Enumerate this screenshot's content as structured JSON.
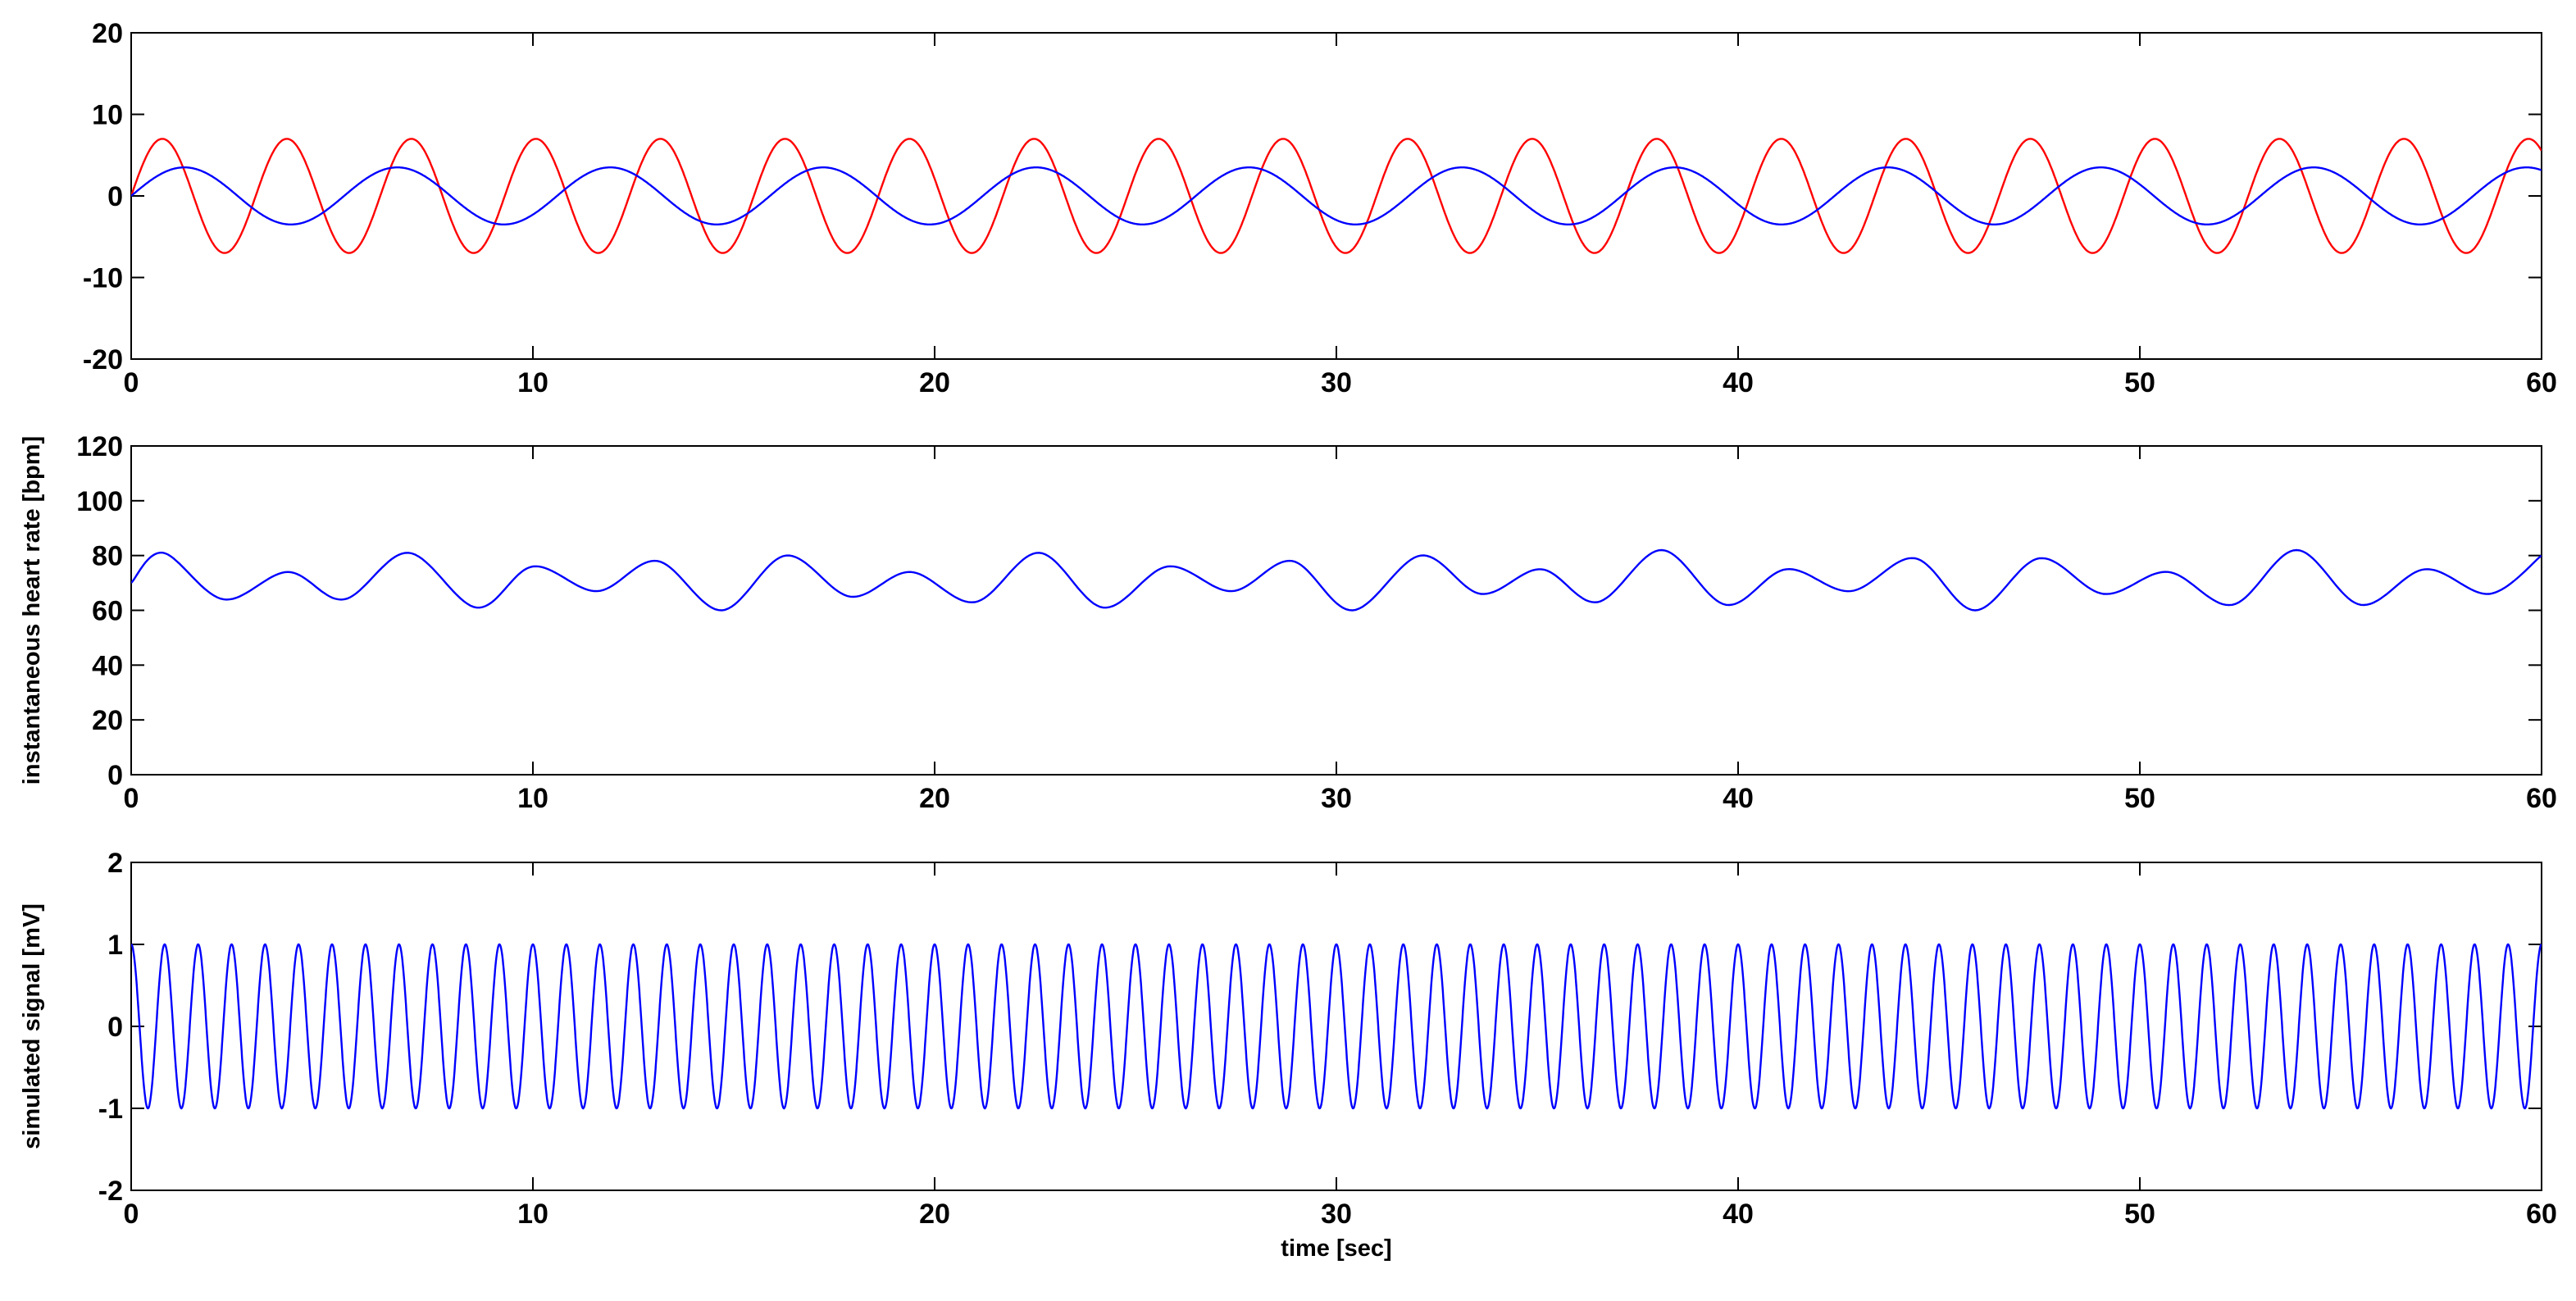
{
  "chart_data": [
    {
      "type": "line",
      "xlim": [
        0,
        60
      ],
      "ylim": [
        -20,
        20
      ],
      "xticks": [
        0,
        10,
        20,
        30,
        40,
        50,
        60
      ],
      "yticks": [
        -20,
        -10,
        0,
        10,
        20
      ],
      "xlabel": "",
      "ylabel": "",
      "grid": false,
      "series": [
        {
          "color": "#ff0000",
          "amplitude": 7,
          "period_sec": 3.1,
          "x": [
            0,
            0.78,
            1.55,
            2.33,
            3.1,
            3.88,
            4.65,
            5.43,
            6.2,
            6.98,
            7.75,
            8.53,
            9.3,
            10.08,
            10.85,
            11.63,
            12.4,
            13.18,
            13.95,
            14.73,
            15.5,
            16.28,
            17.05,
            17.83,
            18.6,
            19.38,
            20.15,
            20.93,
            21.7,
            22.48,
            23.25,
            24.03,
            24.8,
            25.58,
            26.35,
            27.13,
            27.9,
            28.68,
            29.45,
            30.23,
            31.0,
            31.78,
            32.55,
            33.33,
            34.1,
            34.88,
            35.65,
            36.43,
            37.2,
            37.98,
            38.75,
            39.53,
            40.3,
            41.08,
            41.85,
            42.63,
            43.4,
            44.18,
            44.95,
            45.73,
            46.5,
            47.28,
            48.05,
            48.83,
            49.6,
            50.38,
            51.15,
            51.93,
            52.7,
            53.48,
            54.25,
            55.03,
            55.8,
            56.58,
            57.35,
            58.13,
            58.9,
            59.68,
            60
          ],
          "y": [
            0,
            7,
            0,
            -7,
            0,
            7,
            0,
            -7,
            0,
            7,
            0,
            -7,
            0,
            7,
            0,
            -7,
            0,
            7,
            0,
            -7,
            0,
            7,
            0,
            -7,
            0,
            7,
            0,
            -7,
            0,
            7,
            0,
            -7,
            0,
            7,
            0,
            -7,
            0,
            7,
            0,
            -7,
            0,
            7,
            0,
            -7,
            0,
            7,
            0,
            -7,
            0,
            7,
            0,
            -7,
            0,
            7,
            0,
            -7,
            0,
            7,
            0,
            -7,
            0,
            7,
            0,
            -7,
            0,
            7,
            0,
            -7,
            0,
            7,
            0,
            -7,
            0,
            7,
            0,
            -7,
            0,
            7,
            1.2
          ]
        },
        {
          "color": "#0000ff",
          "amplitude": 3.5,
          "period_sec": 5.3,
          "x": [
            0,
            1.33,
            2.65,
            3.98,
            5.3,
            6.63,
            7.95,
            9.28,
            10.6,
            11.93,
            13.25,
            14.58,
            15.9,
            17.23,
            18.55,
            19.88,
            21.2,
            22.53,
            23.85,
            25.18,
            26.5,
            27.83,
            29.15,
            30.48,
            31.8,
            33.13,
            34.45,
            35.78,
            37.1,
            38.43,
            39.75,
            41.08,
            42.4,
            43.73,
            45.05,
            46.38,
            47.7,
            49.03,
            50.35,
            51.68,
            53.0,
            54.33,
            55.65,
            56.98,
            58.3,
            59.63,
            60
          ],
          "y": [
            0,
            3.5,
            0,
            -3.5,
            0,
            3.5,
            0,
            -3.5,
            0,
            3.5,
            0,
            -3.5,
            0,
            3.5,
            0,
            -3.5,
            0,
            3.5,
            0,
            -3.5,
            0,
            3.5,
            0,
            -3.5,
            0,
            3.5,
            0,
            -3.5,
            0,
            3.5,
            0,
            -3.5,
            0,
            3.5,
            0,
            -3.5,
            0,
            3.5,
            0,
            -3.5,
            0,
            3.5,
            0,
            -3.5,
            0,
            3.5,
            2.5
          ]
        }
      ]
    },
    {
      "type": "line",
      "xlim": [
        0,
        60
      ],
      "ylim": [
        0,
        120
      ],
      "xticks": [
        0,
        10,
        20,
        30,
        40,
        50,
        60
      ],
      "yticks": [
        0,
        20,
        40,
        60,
        80,
        100,
        120
      ],
      "xlabel": "",
      "ylabel": "instantaneous heart rate [bpm]",
      "grid": false,
      "series": [
        {
          "color": "#0000ff",
          "x": [
            0,
            0.8,
            2.3,
            3.9,
            5.3,
            6.9,
            8.6,
            10.0,
            11.6,
            13.1,
            14.7,
            16.3,
            17.9,
            19.4,
            21.0,
            22.6,
            24.2,
            25.8,
            27.4,
            28.9,
            30.4,
            32.1,
            33.6,
            35.1,
            36.5,
            38.1,
            39.7,
            41.2,
            42.8,
            44.4,
            45.9,
            47.5,
            49.1,
            50.7,
            52.3,
            53.9,
            55.5,
            57.1,
            58.7,
            60
          ],
          "y": [
            70,
            81,
            64,
            74,
            64,
            81,
            61,
            76,
            67,
            78,
            60,
            80,
            65,
            74,
            63,
            81,
            61,
            76,
            67,
            78,
            60,
            80,
            66,
            75,
            63,
            82,
            62,
            75,
            67,
            79,
            60,
            79,
            66,
            74,
            62,
            82,
            62,
            75,
            66,
            80
          ]
        }
      ]
    },
    {
      "type": "line",
      "xlim": [
        0,
        60
      ],
      "ylim": [
        -2,
        2
      ],
      "xticks": [
        0,
        10,
        20,
        30,
        40,
        50,
        60
      ],
      "yticks": [
        -2,
        -1,
        0,
        1,
        2
      ],
      "xlabel": "time [sec]",
      "ylabel": "simulated signal [mV]",
      "grid": false,
      "series": [
        {
          "color": "#0000ff",
          "amplitude": 1,
          "frequency_hz": 1.2,
          "x_start": 0,
          "x_end": 60
        }
      ]
    }
  ]
}
